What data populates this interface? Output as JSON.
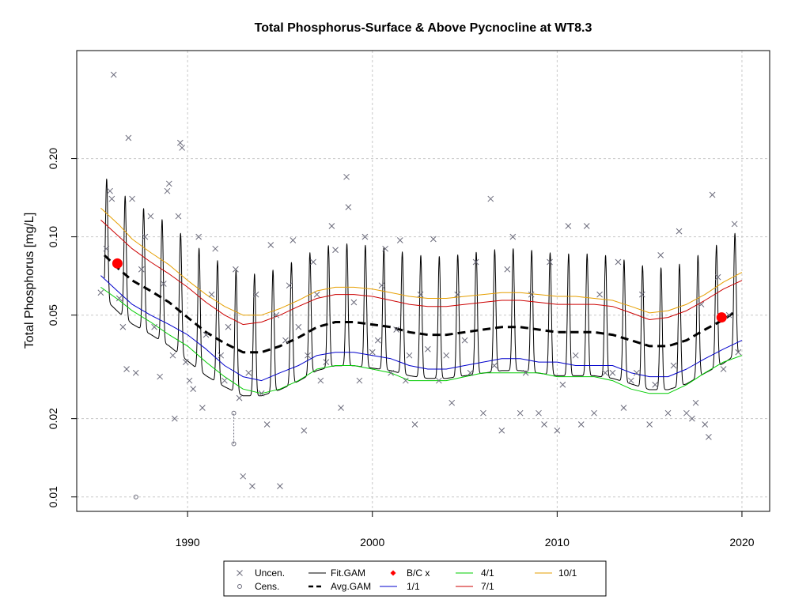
{
  "chart_data": {
    "type": "scatter",
    "title": "Total Phosphorus-Surface & Above Pycnocline at WT8.3",
    "ylabel": "Total Phosphorus [mg/L]",
    "xlabel": "",
    "y_scale": "log",
    "xlim": [
      1984,
      2021.5
    ],
    "ylim": [
      0.0088,
      0.52
    ],
    "x_ticks": [
      1990,
      2000,
      2010,
      2020
    ],
    "y_ticks": [
      0.01,
      0.02,
      0.05,
      0.1,
      0.2
    ],
    "y_tick_labels": [
      "0.01",
      "0.02",
      "0.05",
      "0.10",
      "0.20"
    ],
    "grid": true,
    "legend": {
      "placement": "bottom",
      "entries": [
        {
          "label": "Uncen.",
          "symbol": "x",
          "color": "#6b6b7b"
        },
        {
          "label": "Cens.",
          "symbol": "o",
          "color": "#6b6b7b"
        },
        {
          "label": "Fit.GAM",
          "symbol": "line",
          "color": "#000000"
        },
        {
          "label": "Avg.GAM",
          "symbol": "dashed",
          "color": "#000000"
        },
        {
          "label": "B/C x",
          "symbol": "diamond",
          "color": "#ff0000"
        },
        {
          "label": "1/1",
          "symbol": "line",
          "color": "#0000cc"
        },
        {
          "label": "4/1",
          "symbol": "line",
          "color": "#00cc00"
        },
        {
          "label": "7/1",
          "symbol": "line",
          "color": "#cc0000"
        },
        {
          "label": "10/1",
          "symbol": "line",
          "color": "#e69f00"
        }
      ]
    },
    "colors": {
      "uncensored": "#6b6b7b",
      "censored": "#6b6b7b",
      "fit_gam": "#000000",
      "avg_gam": "#000000",
      "baseline_current": "#ff0000",
      "d1_1": "#0000cc",
      "d4_1": "#00cc00",
      "d7_1": "#cc0000",
      "d10_1": "#e69f00"
    },
    "avg_gam": [
      [
        1985.5,
        0.085
      ],
      [
        1986.3,
        0.075
      ],
      [
        1987.0,
        0.068
      ],
      [
        1988.0,
        0.062
      ],
      [
        1989.0,
        0.056
      ],
      [
        1990.0,
        0.049
      ],
      [
        1991.0,
        0.043
      ],
      [
        1992.0,
        0.039
      ],
      [
        1993.0,
        0.036
      ],
      [
        1994.0,
        0.036
      ],
      [
        1995.0,
        0.038
      ],
      [
        1996.0,
        0.041
      ],
      [
        1997.0,
        0.045
      ],
      [
        1998.0,
        0.047
      ],
      [
        1999.0,
        0.047
      ],
      [
        2000.0,
        0.046
      ],
      [
        2001.0,
        0.045
      ],
      [
        2002.0,
        0.043
      ],
      [
        2003.0,
        0.042
      ],
      [
        2004.0,
        0.042
      ],
      [
        2005.0,
        0.043
      ],
      [
        2006.0,
        0.044
      ],
      [
        2007.0,
        0.045
      ],
      [
        2008.0,
        0.045
      ],
      [
        2009.0,
        0.044
      ],
      [
        2010.0,
        0.043
      ],
      [
        2011.0,
        0.043
      ],
      [
        2012.0,
        0.043
      ],
      [
        2013.0,
        0.042
      ],
      [
        2014.0,
        0.04
      ],
      [
        2015.0,
        0.038
      ],
      [
        2016.0,
        0.038
      ],
      [
        2017.0,
        0.04
      ],
      [
        2018.0,
        0.044
      ],
      [
        2019.0,
        0.048
      ],
      [
        2019.7,
        0.052
      ]
    ],
    "d1_1": [
      [
        1985.3,
        0.071
      ],
      [
        1986.3,
        0.061
      ],
      [
        1987.0,
        0.055
      ],
      [
        1988.0,
        0.05
      ],
      [
        1989.0,
        0.046
      ],
      [
        1990.0,
        0.042
      ],
      [
        1991.0,
        0.037
      ],
      [
        1992.0,
        0.032
      ],
      [
        1993.0,
        0.029
      ],
      [
        1994.0,
        0.028
      ],
      [
        1995.0,
        0.03
      ],
      [
        1996.0,
        0.032
      ],
      [
        1997.0,
        0.035
      ],
      [
        1998.0,
        0.036
      ],
      [
        1999.0,
        0.036
      ],
      [
        2000.0,
        0.035
      ],
      [
        2001.0,
        0.034
      ],
      [
        2002.0,
        0.032
      ],
      [
        2003.0,
        0.031
      ],
      [
        2004.0,
        0.031
      ],
      [
        2005.0,
        0.032
      ],
      [
        2006.0,
        0.033
      ],
      [
        2007.0,
        0.034
      ],
      [
        2008.0,
        0.034
      ],
      [
        2009.0,
        0.033
      ],
      [
        2010.0,
        0.033
      ],
      [
        2011.0,
        0.032
      ],
      [
        2012.0,
        0.032
      ],
      [
        2013.0,
        0.032
      ],
      [
        2014.0,
        0.03
      ],
      [
        2015.0,
        0.029
      ],
      [
        2016.0,
        0.029
      ],
      [
        2017.0,
        0.031
      ],
      [
        2018.0,
        0.034
      ],
      [
        2019.0,
        0.037
      ],
      [
        2020.0,
        0.04
      ]
    ],
    "d4_1": [
      [
        1985.3,
        0.064
      ],
      [
        1986.3,
        0.057
      ],
      [
        1987.0,
        0.052
      ],
      [
        1988.0,
        0.047
      ],
      [
        1989.0,
        0.042
      ],
      [
        1990.0,
        0.038
      ],
      [
        1991.0,
        0.033
      ],
      [
        1992.0,
        0.029
      ],
      [
        1993.0,
        0.026
      ],
      [
        1994.0,
        0.025
      ],
      [
        1995.0,
        0.026
      ],
      [
        1996.0,
        0.028
      ],
      [
        1997.0,
        0.031
      ],
      [
        1998.0,
        0.032
      ],
      [
        1999.0,
        0.032
      ],
      [
        2000.0,
        0.031
      ],
      [
        2001.0,
        0.03
      ],
      [
        2002.0,
        0.028
      ],
      [
        2003.0,
        0.028
      ],
      [
        2004.0,
        0.028
      ],
      [
        2005.0,
        0.029
      ],
      [
        2006.0,
        0.03
      ],
      [
        2007.0,
        0.03
      ],
      [
        2008.0,
        0.03
      ],
      [
        2009.0,
        0.03
      ],
      [
        2010.0,
        0.029
      ],
      [
        2011.0,
        0.029
      ],
      [
        2012.0,
        0.029
      ],
      [
        2013.0,
        0.028
      ],
      [
        2014.0,
        0.026
      ],
      [
        2015.0,
        0.025
      ],
      [
        2016.0,
        0.025
      ],
      [
        2017.0,
        0.027
      ],
      [
        2018.0,
        0.03
      ],
      [
        2019.0,
        0.033
      ],
      [
        2020.0,
        0.035
      ]
    ],
    "d7_1": [
      [
        1985.3,
        0.116
      ],
      [
        1986.3,
        0.1
      ],
      [
        1987.0,
        0.09
      ],
      [
        1988.0,
        0.08
      ],
      [
        1989.0,
        0.072
      ],
      [
        1990.0,
        0.064
      ],
      [
        1991.0,
        0.056
      ],
      [
        1992.0,
        0.05
      ],
      [
        1993.0,
        0.046
      ],
      [
        1994.0,
        0.047
      ],
      [
        1995.0,
        0.05
      ],
      [
        1996.0,
        0.054
      ],
      [
        1997.0,
        0.058
      ],
      [
        1998.0,
        0.06
      ],
      [
        1999.0,
        0.06
      ],
      [
        2000.0,
        0.059
      ],
      [
        2001.0,
        0.057
      ],
      [
        2002.0,
        0.055
      ],
      [
        2003.0,
        0.054
      ],
      [
        2004.0,
        0.054
      ],
      [
        2005.0,
        0.055
      ],
      [
        2006.0,
        0.056
      ],
      [
        2007.0,
        0.057
      ],
      [
        2008.0,
        0.057
      ],
      [
        2009.0,
        0.056
      ],
      [
        2010.0,
        0.055
      ],
      [
        2011.0,
        0.055
      ],
      [
        2012.0,
        0.055
      ],
      [
        2013.0,
        0.054
      ],
      [
        2014.0,
        0.051
      ],
      [
        2015.0,
        0.048
      ],
      [
        2016.0,
        0.049
      ],
      [
        2017.0,
        0.052
      ],
      [
        2018.0,
        0.057
      ],
      [
        2019.0,
        0.063
      ],
      [
        2020.0,
        0.068
      ]
    ],
    "d10_1": [
      [
        1985.3,
        0.129
      ],
      [
        1986.3,
        0.111
      ],
      [
        1987.0,
        0.098
      ],
      [
        1988.0,
        0.087
      ],
      [
        1989.0,
        0.078
      ],
      [
        1990.0,
        0.068
      ],
      [
        1991.0,
        0.06
      ],
      [
        1992.0,
        0.054
      ],
      [
        1993.0,
        0.05
      ],
      [
        1994.0,
        0.05
      ],
      [
        1995.0,
        0.053
      ],
      [
        1996.0,
        0.057
      ],
      [
        1997.0,
        0.062
      ],
      [
        1998.0,
        0.064
      ],
      [
        1999.0,
        0.064
      ],
      [
        2000.0,
        0.063
      ],
      [
        2001.0,
        0.061
      ],
      [
        2002.0,
        0.059
      ],
      [
        2003.0,
        0.058
      ],
      [
        2004.0,
        0.058
      ],
      [
        2005.0,
        0.059
      ],
      [
        2006.0,
        0.06
      ],
      [
        2007.0,
        0.061
      ],
      [
        2008.0,
        0.061
      ],
      [
        2009.0,
        0.06
      ],
      [
        2010.0,
        0.059
      ],
      [
        2011.0,
        0.059
      ],
      [
        2012.0,
        0.058
      ],
      [
        2013.0,
        0.057
      ],
      [
        2014.0,
        0.054
      ],
      [
        2015.0,
        0.051
      ],
      [
        2016.0,
        0.052
      ],
      [
        2017.0,
        0.055
      ],
      [
        2018.0,
        0.06
      ],
      [
        2019.0,
        0.067
      ],
      [
        2020.0,
        0.073
      ]
    ],
    "fit_gam_seasonal": {
      "start": 1985.5,
      "end": 2019.8,
      "peak_phase": 0.62,
      "peak_ratio": 2.0,
      "trough_ratio": 0.68
    },
    "baseline_current": [
      [
        1986.2,
        0.079
      ],
      [
        2018.9,
        0.049
      ]
    ],
    "censored": [
      [
        1987.2,
        0.01
      ],
      [
        1992.5,
        0.016
      ],
      [
        1992.5,
        0.021
      ]
    ],
    "uncensored": [
      [
        1985.3,
        0.061
      ],
      [
        1985.6,
        0.09
      ],
      [
        1985.8,
        0.15
      ],
      [
        1985.9,
        0.14
      ],
      [
        1986.0,
        0.42
      ],
      [
        1986.3,
        0.058
      ],
      [
        1986.5,
        0.045
      ],
      [
        1986.7,
        0.031
      ],
      [
        1986.8,
        0.24
      ],
      [
        1987.0,
        0.14
      ],
      [
        1987.2,
        0.03
      ],
      [
        1987.5,
        0.075
      ],
      [
        1987.7,
        0.1
      ],
      [
        1988.0,
        0.12
      ],
      [
        1988.2,
        0.045
      ],
      [
        1988.5,
        0.029
      ],
      [
        1988.7,
        0.066
      ],
      [
        1988.9,
        0.15
      ],
      [
        1989.0,
        0.16
      ],
      [
        1989.2,
        0.035
      ],
      [
        1989.3,
        0.02
      ],
      [
        1989.5,
        0.12
      ],
      [
        1989.6,
        0.23
      ],
      [
        1989.7,
        0.22
      ],
      [
        1989.9,
        0.033
      ],
      [
        1990.1,
        0.028
      ],
      [
        1990.3,
        0.026
      ],
      [
        1990.6,
        0.1
      ],
      [
        1990.8,
        0.022
      ],
      [
        1991.0,
        0.042
      ],
      [
        1991.3,
        0.06
      ],
      [
        1991.5,
        0.09
      ],
      [
        1991.8,
        0.035
      ],
      [
        1992.0,
        0.028
      ],
      [
        1992.2,
        0.045
      ],
      [
        1992.6,
        0.075
      ],
      [
        1992.8,
        0.024
      ],
      [
        1993.0,
        0.012
      ],
      [
        1993.3,
        0.03
      ],
      [
        1993.5,
        0.011
      ],
      [
        1993.7,
        0.06
      ],
      [
        1994.0,
        0.025
      ],
      [
        1994.3,
        0.019
      ],
      [
        1994.5,
        0.093
      ],
      [
        1994.8,
        0.05
      ],
      [
        1995.0,
        0.011
      ],
      [
        1995.3,
        0.04
      ],
      [
        1995.5,
        0.065
      ],
      [
        1995.7,
        0.097
      ],
      [
        1996.0,
        0.045
      ],
      [
        1996.3,
        0.018
      ],
      [
        1996.5,
        0.035
      ],
      [
        1996.8,
        0.08
      ],
      [
        1997.0,
        0.06
      ],
      [
        1997.2,
        0.028
      ],
      [
        1997.5,
        0.033
      ],
      [
        1997.8,
        0.11
      ],
      [
        1998.0,
        0.089
      ],
      [
        1998.3,
        0.022
      ],
      [
        1998.6,
        0.17
      ],
      [
        1998.7,
        0.13
      ],
      [
        1999.0,
        0.056
      ],
      [
        1999.3,
        0.028
      ],
      [
        1999.6,
        0.1
      ],
      [
        2000.0,
        0.036
      ],
      [
        2000.3,
        0.04
      ],
      [
        2000.5,
        0.065
      ],
      [
        2000.7,
        0.09
      ],
      [
        2001.0,
        0.03
      ],
      [
        2001.3,
        0.044
      ],
      [
        2001.5,
        0.097
      ],
      [
        2001.8,
        0.028
      ],
      [
        2002.0,
        0.035
      ],
      [
        2002.3,
        0.019
      ],
      [
        2002.6,
        0.06
      ],
      [
        2003.0,
        0.037
      ],
      [
        2003.3,
        0.098
      ],
      [
        2003.6,
        0.028
      ],
      [
        2004.0,
        0.035
      ],
      [
        2004.3,
        0.023
      ],
      [
        2004.6,
        0.06
      ],
      [
        2005.0,
        0.04
      ],
      [
        2005.3,
        0.03
      ],
      [
        2005.6,
        0.08
      ],
      [
        2006.0,
        0.021
      ],
      [
        2006.4,
        0.14
      ],
      [
        2006.6,
        0.032
      ],
      [
        2007.0,
        0.018
      ],
      [
        2007.3,
        0.075
      ],
      [
        2007.6,
        0.1
      ],
      [
        2008.0,
        0.021
      ],
      [
        2008.3,
        0.03
      ],
      [
        2008.6,
        0.06
      ],
      [
        2009.0,
        0.021
      ],
      [
        2009.3,
        0.019
      ],
      [
        2009.6,
        0.08
      ],
      [
        2010.0,
        0.018
      ],
      [
        2010.3,
        0.027
      ],
      [
        2010.6,
        0.11
      ],
      [
        2011.0,
        0.035
      ],
      [
        2011.3,
        0.019
      ],
      [
        2011.6,
        0.11
      ],
      [
        2012.0,
        0.021
      ],
      [
        2012.3,
        0.06
      ],
      [
        2012.6,
        0.03
      ],
      [
        2013.0,
        0.03
      ],
      [
        2013.3,
        0.08
      ],
      [
        2013.6,
        0.022
      ],
      [
        2014.0,
        0.028
      ],
      [
        2014.3,
        0.03
      ],
      [
        2014.6,
        0.06
      ],
      [
        2015.0,
        0.019
      ],
      [
        2015.3,
        0.027
      ],
      [
        2015.6,
        0.085
      ],
      [
        2016.0,
        0.021
      ],
      [
        2016.3,
        0.032
      ],
      [
        2016.6,
        0.105
      ],
      [
        2017.0,
        0.021
      ],
      [
        2017.3,
        0.02
      ],
      [
        2017.5,
        0.023
      ],
      [
        2017.8,
        0.055
      ],
      [
        2018.0,
        0.019
      ],
      [
        2018.2,
        0.017
      ],
      [
        2018.4,
        0.145
      ],
      [
        2018.7,
        0.07
      ],
      [
        2019.0,
        0.031
      ],
      [
        2019.3,
        0.05
      ],
      [
        2019.6,
        0.112
      ],
      [
        2019.8,
        0.036
      ]
    ]
  }
}
